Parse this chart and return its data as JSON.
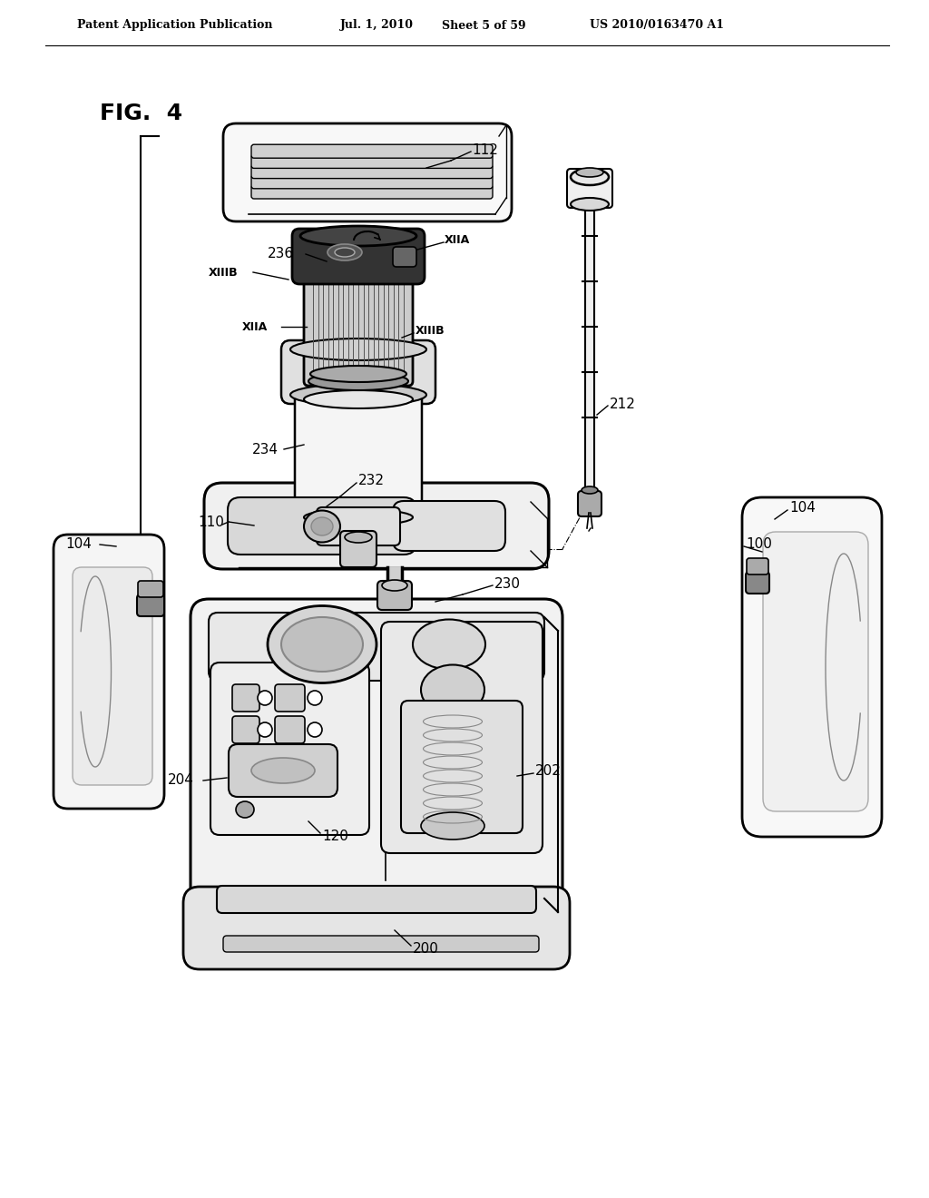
{
  "bg_color": "#ffffff",
  "fig_width": 10.24,
  "fig_height": 13.2,
  "dpi": 100,
  "header_text": "Patent Application Publication",
  "header_date": "Jul. 1, 2010",
  "header_sheet": "Sheet 5 of 59",
  "header_patent": "US 2010/0163470 A1",
  "fig_label": "FIG. 4",
  "line_color": "#000000",
  "bg_white": "#ffffff",
  "gray_light": "#e8e8e8",
  "gray_mid": "#bbbbbb",
  "gray_dark": "#555555"
}
